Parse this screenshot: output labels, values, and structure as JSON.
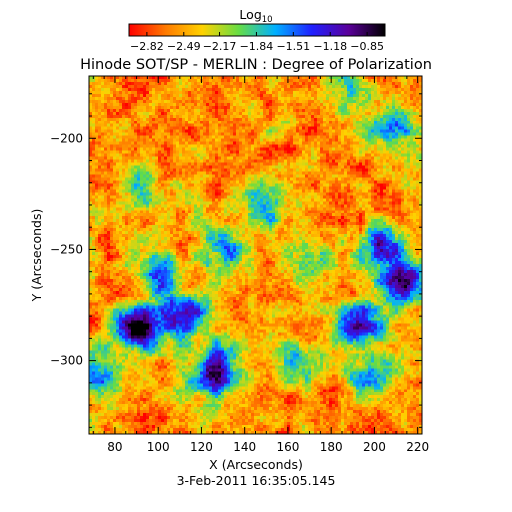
{
  "chart_data": {
    "type": "heatmap",
    "title": "Hinode SOT/SP - MERLIN : Degree of Polarization",
    "xlabel": "X (Arcseconds)",
    "ylabel": "Y (Arcseconds)",
    "timestamp": "3-Feb-2011 16:35:05.145",
    "xlim": [
      68,
      222
    ],
    "ylim": [
      -333,
      -172
    ],
    "x_ticks": [
      80,
      100,
      120,
      140,
      160,
      180,
      200,
      220
    ],
    "y_ticks": [
      -200,
      -250,
      -300
    ],
    "colorbar": {
      "label_base": "Log",
      "label_sub": "10",
      "range": [
        -2.98,
        -0.69
      ],
      "ticks": [
        -2.82,
        -2.49,
        -2.17,
        -1.84,
        -1.51,
        -1.18,
        -0.85
      ],
      "tick_labels": [
        "−2.82",
        "−2.49",
        "−2.17",
        "−1.84",
        "−1.51",
        "−1.18",
        "−0.85"
      ],
      "colors": [
        "#ff0000",
        "#ff7a00",
        "#ffd200",
        "#66dd44",
        "#00b0ff",
        "#2020ff",
        "#5a009a",
        "#000000"
      ]
    },
    "regions": [
      {
        "x": 92,
        "y": -285,
        "value": -1.05
      },
      {
        "x": 110,
        "y": -280,
        "value": -1.2
      },
      {
        "x": 125,
        "y": -305,
        "value": -0.95
      },
      {
        "x": 70,
        "y": -305,
        "value": -0.9
      },
      {
        "x": 100,
        "y": -262,
        "value": -1.5
      },
      {
        "x": 130,
        "y": -250,
        "value": -1.4
      },
      {
        "x": 195,
        "y": -285,
        "value": -1.3
      },
      {
        "x": 212,
        "y": -265,
        "value": -1.0
      },
      {
        "x": 205,
        "y": -250,
        "value": -1.4
      },
      {
        "x": 200,
        "y": -305,
        "value": -1.5
      },
      {
        "x": 205,
        "y": -195,
        "value": -1.25
      },
      {
        "x": 190,
        "y": -180,
        "value": -1.6
      },
      {
        "x": 150,
        "y": -230,
        "value": -1.75
      },
      {
        "x": 170,
        "y": -255,
        "value": -1.8
      },
      {
        "x": 90,
        "y": -225,
        "value": -1.8
      },
      {
        "x": 165,
        "y": -300,
        "value": -1.7
      }
    ]
  }
}
